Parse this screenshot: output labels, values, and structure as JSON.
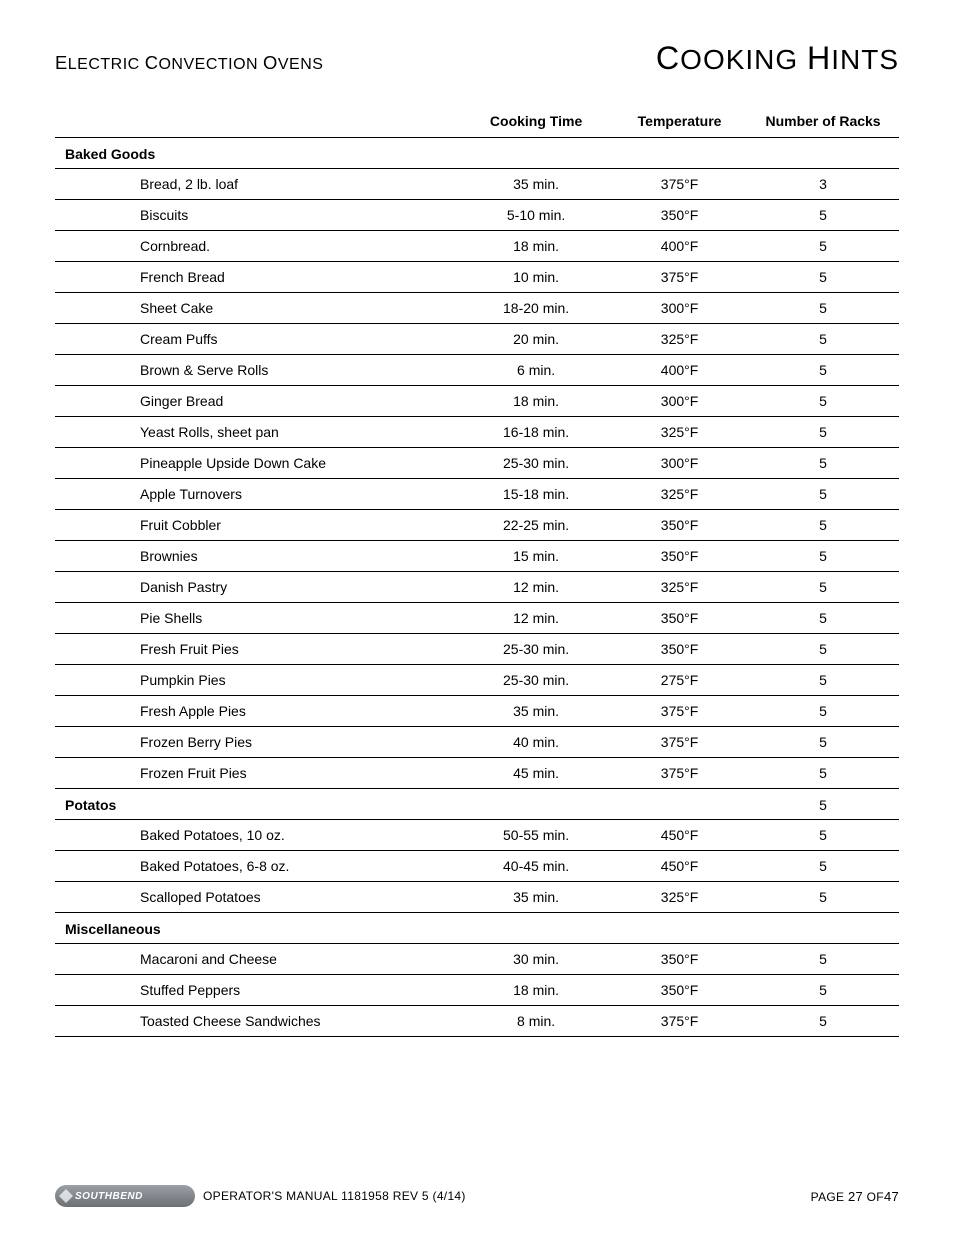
{
  "header": {
    "left_words": [
      "ELECTRIC",
      "CONVECTION",
      "OVENS"
    ],
    "right_words": [
      "COOKING",
      "HINTS"
    ]
  },
  "columns": {
    "item": "",
    "time": "Cooking Time",
    "temp": "Temperature",
    "racks": "Number of Racks"
  },
  "sections": [
    {
      "title": "Baked Goods",
      "racks": "",
      "rows": [
        {
          "item": "Bread, 2 lb. loaf",
          "time": "35 min.",
          "temp": "375°F",
          "racks": "3"
        },
        {
          "item": "Biscuits",
          "time": "5-10 min.",
          "temp": "350°F",
          "racks": "5"
        },
        {
          "item": "Cornbread.",
          "time": "18 min.",
          "temp": "400°F",
          "racks": "5"
        },
        {
          "item": "French Bread",
          "time": "10 min.",
          "temp": "375°F",
          "racks": "5"
        },
        {
          "item": "Sheet Cake",
          "time": "18-20 min.",
          "temp": "300°F",
          "racks": "5"
        },
        {
          "item": "Cream Puffs",
          "time": "20 min.",
          "temp": "325°F",
          "racks": "5"
        },
        {
          "item": "Brown & Serve Rolls",
          "time": "6 min.",
          "temp": "400°F",
          "racks": "5"
        },
        {
          "item": "Ginger Bread",
          "time": "18 min.",
          "temp": "300°F",
          "racks": "5"
        },
        {
          "item": "Yeast Rolls, sheet pan",
          "time": "16-18 min.",
          "temp": "325°F",
          "racks": "5"
        },
        {
          "item": "Pineapple Upside Down Cake",
          "time": "25-30 min.",
          "temp": "300°F",
          "racks": "5"
        },
        {
          "item": "Apple Turnovers",
          "time": "15-18 min.",
          "temp": "325°F",
          "racks": "5"
        },
        {
          "item": "Fruit Cobbler",
          "time": "22-25 min.",
          "temp": "350°F",
          "racks": "5"
        },
        {
          "item": "Brownies",
          "time": "15 min.",
          "temp": "350°F",
          "racks": "5"
        },
        {
          "item": "Danish Pastry",
          "time": "12 min.",
          "temp": "325°F",
          "racks": "5"
        },
        {
          "item": "Pie Shells",
          "time": "12 min.",
          "temp": "350°F",
          "racks": "5"
        },
        {
          "item": "Fresh Fruit Pies",
          "time": "25-30 min.",
          "temp": "350°F",
          "racks": "5"
        },
        {
          "item": "Pumpkin Pies",
          "time": "25-30 min.",
          "temp": "275°F",
          "racks": "5"
        },
        {
          "item": "Fresh Apple Pies",
          "time": "35 min.",
          "temp": "375°F",
          "racks": "5"
        },
        {
          "item": "Frozen Berry Pies",
          "time": "40 min.",
          "temp": "375°F",
          "racks": "5"
        },
        {
          "item": "Frozen Fruit Pies",
          "time": "45 min.",
          "temp": "375°F",
          "racks": "5"
        }
      ]
    },
    {
      "title": "Potatos",
      "racks": "5",
      "rows": [
        {
          "item": "Baked Potatoes, 10 oz.",
          "time": "50-55 min.",
          "temp": "450°F",
          "racks": "5"
        },
        {
          "item": "Baked Potatoes, 6-8 oz.",
          "time": "40-45 min.",
          "temp": "450°F",
          "racks": "5"
        },
        {
          "item": "Scalloped Potatoes",
          "time": "35 min.",
          "temp": "325°F",
          "racks": "5"
        }
      ]
    },
    {
      "title": "Miscellaneous",
      "racks": "",
      "rows": [
        {
          "item": "Macaroni and Cheese",
          "time": "30 min.",
          "temp": "350°F",
          "racks": "5"
        },
        {
          "item": "Stuffed Peppers",
          "time": "18 min.",
          "temp": "350°F",
          "racks": "5"
        },
        {
          "item": "Toasted Cheese Sandwiches",
          "time": "8 min.",
          "temp": "375°F",
          "racks": "5"
        }
      ]
    }
  ],
  "footer": {
    "logo_text": "SOUTHBEND",
    "manual": "OPERATOR'S MANUAL 1181958 REV 5 (4/14)",
    "page_prefix": "PAGE ",
    "page_num": "27",
    "page_suffix": " OF",
    "page_total": "47"
  }
}
